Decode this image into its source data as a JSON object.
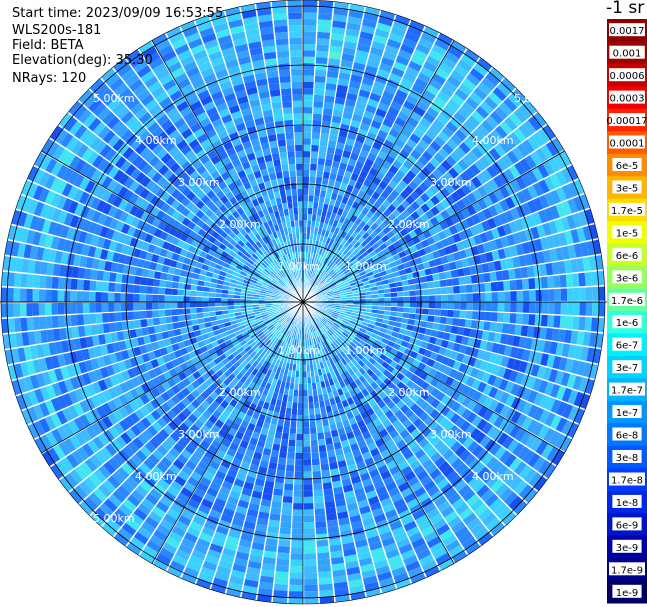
{
  "info": {
    "start_time": "Start time: 2023/09/09 16:53:55",
    "device": "WLS200s-181",
    "field": "Field: BETA",
    "elevation": "Elevation(deg): 35.30",
    "nrays": "NRays: 120"
  },
  "colorbar": {
    "unit": "-1 sr",
    "labels": [
      "0.0017",
      "0.001",
      "0.0006",
      "0.0003",
      "0.00017",
      "0.0001",
      "6e-5",
      "3e-5",
      "1.7e-5",
      "1e-5",
      "6e-6",
      "3e-6",
      "1.7e-6",
      "1e-6",
      "6e-7",
      "3e-7",
      "1.7e-7",
      "1e-7",
      "6e-8",
      "3e-8",
      "1.7e-8",
      "1e-8",
      "6e-9",
      "3e-9",
      "1.7e-9",
      "1e-9"
    ],
    "colors": [
      "#8b0000",
      "#a00000",
      "#c80000",
      "#f00000",
      "#ff2400",
      "#ff5a00",
      "#ff8c00",
      "#ffb400",
      "#ffdc00",
      "#f0ff00",
      "#c8ff28",
      "#96ff5a",
      "#64ffa0",
      "#32ffdc",
      "#00f0ff",
      "#00d2ff",
      "#00b4ff",
      "#0096ff",
      "#0078ff",
      "#005aff",
      "#003cff",
      "#0028e6",
      "#0014c8",
      "#0000aa",
      "#00008c",
      "#000064"
    ]
  },
  "chart_data": {
    "type": "heatmap",
    "projection": "polar PPI",
    "nrays": 120,
    "range_km": [
      0,
      5.2
    ],
    "ring_labels": [
      "1.00km",
      "2.00km",
      "3.00km",
      "4.00km",
      "5.00km"
    ],
    "ring_values_km": [
      1,
      2,
      3,
      4,
      5
    ],
    "color_scale": "log",
    "value_range": [
      "1e-9",
      "0.0017"
    ],
    "field": "BETA"
  }
}
